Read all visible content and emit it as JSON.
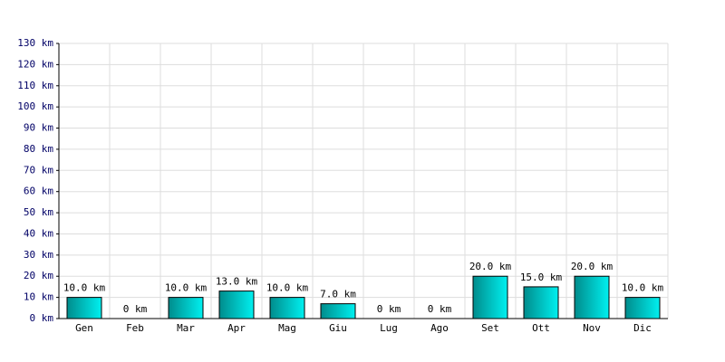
{
  "chart_data": {
    "type": "bar",
    "categories": [
      "Gen",
      "Feb",
      "Mar",
      "Apr",
      "Mag",
      "Giu",
      "Lug",
      "Ago",
      "Set",
      "Ott",
      "Nov",
      "Dic"
    ],
    "values": [
      10,
      0,
      10,
      13,
      10,
      7,
      0,
      0,
      20,
      15,
      20,
      10
    ],
    "value_labels": [
      "10.0 km",
      "0 km",
      "10.0 km",
      "13.0 km",
      "10.0 km",
      "7.0 km",
      "0 km",
      "0 km",
      "20.0 km",
      "15.0 km",
      "20.0 km",
      "10.0 km"
    ],
    "color": "#00f0f0",
    "ylim": [
      0,
      130
    ],
    "yticks": [
      {
        "value": 0,
        "label": "0 km"
      },
      {
        "value": 10,
        "label": "10 km"
      },
      {
        "value": 20,
        "label": "20 km"
      },
      {
        "value": 30,
        "label": "30 km"
      },
      {
        "value": 40,
        "label": "40 km"
      },
      {
        "value": 50,
        "label": "50 km"
      },
      {
        "value": 60,
        "label": "60 km"
      },
      {
        "value": 70,
        "label": "70 km"
      },
      {
        "value": 80,
        "label": "80 km"
      },
      {
        "value": 90,
        "label": "90 km"
      },
      {
        "value": 100,
        "label": "100 km"
      },
      {
        "value": 110,
        "label": "110 km"
      },
      {
        "value": 120,
        "label": "120 km"
      },
      {
        "value": 130,
        "label": "130 km"
      }
    ],
    "grid": true
  }
}
